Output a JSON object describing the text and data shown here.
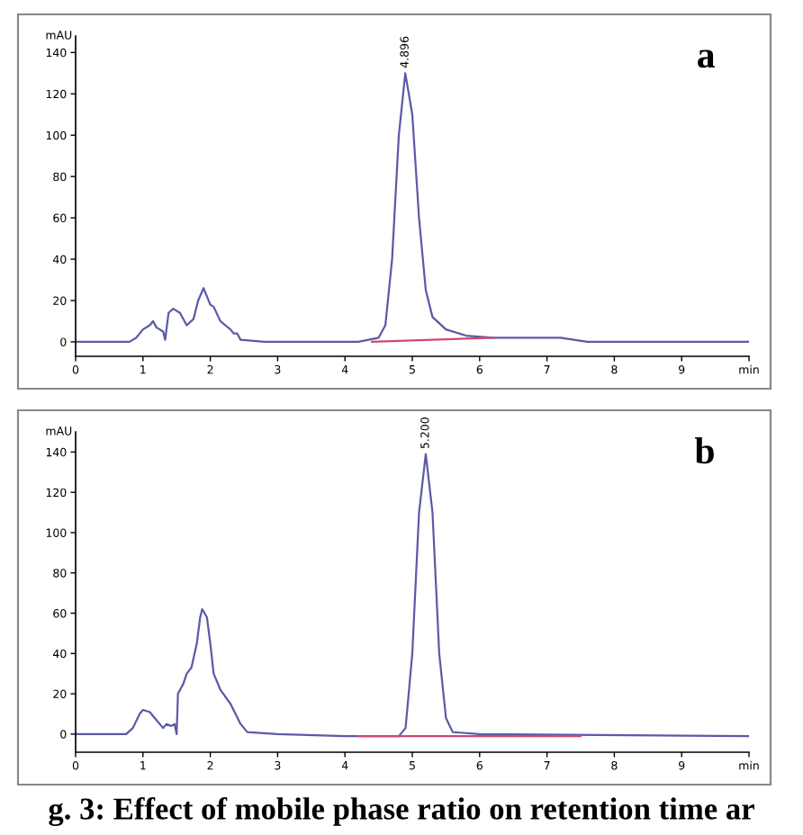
{
  "chart_data": [
    {
      "type": "line",
      "ylabel": "mAU",
      "xlim": [
        0,
        10
      ],
      "ylim": [
        -7,
        148
      ],
      "xticks": [
        0,
        1,
        2,
        3,
        4,
        5,
        6,
        7,
        8,
        9,
        {
          "value": 10,
          "label": "min"
        }
      ],
      "yticks": [
        0,
        20,
        40,
        60,
        80,
        100,
        120,
        140
      ],
      "grid": false,
      "legend": false,
      "marker": "none",
      "line_style": "solid",
      "series": [
        {
          "color": "#5a5aa8",
          "x": [
            0,
            0.8,
            0.9,
            1.0,
            1.1,
            1.15,
            1.2,
            1.3,
            1.33,
            1.38,
            1.45,
            1.55,
            1.65,
            1.75,
            1.82,
            1.9,
            1.95,
            2.0,
            2.05,
            2.15,
            2.3,
            2.35,
            2.4,
            2.45,
            2.8,
            4.2,
            4.5,
            4.6,
            4.7,
            4.8,
            4.896,
            5.0,
            5.1,
            5.2,
            5.3,
            5.5,
            5.8,
            6.2,
            6.8,
            7.2,
            7.6,
            8.5,
            10
          ],
          "values": [
            0,
            0,
            2,
            6,
            8,
            10,
            7,
            5,
            1,
            14,
            16,
            14,
            8,
            11,
            20,
            26,
            22,
            18,
            17,
            10,
            6,
            4,
            4,
            1,
            0,
            0,
            2,
            8,
            40,
            100,
            130,
            110,
            60,
            25,
            12,
            6,
            3,
            2,
            2,
            2,
            0,
            0,
            0
          ]
        },
        {
          "color": "#d04a6a",
          "x": [
            4.4,
            6.2
          ],
          "values": [
            0,
            2
          ]
        }
      ],
      "annotations": [
        {
          "text": "4.896",
          "x": 4.896,
          "y": 130
        },
        "a"
      ]
    },
    {
      "type": "line",
      "ylabel": "mAU",
      "xlim": [
        0,
        10
      ],
      "ylim": [
        -9,
        150
      ],
      "xticks": [
        0,
        1,
        2,
        3,
        4,
        5,
        6,
        7,
        8,
        9,
        {
          "value": 10,
          "label": "min"
        }
      ],
      "yticks": [
        0,
        20,
        40,
        60,
        80,
        100,
        120,
        140
      ],
      "grid": false,
      "legend": false,
      "marker": "none",
      "line_style": "solid",
      "series": [
        {
          "color": "#5a5aa8",
          "x": [
            0,
            0.75,
            0.85,
            0.95,
            1.0,
            1.1,
            1.2,
            1.3,
            1.35,
            1.42,
            1.47,
            1.5,
            1.52,
            1.6,
            1.65,
            1.72,
            1.8,
            1.85,
            1.88,
            1.95,
            2.0,
            2.05,
            2.15,
            2.3,
            2.45,
            2.55,
            3.0,
            4.0,
            4.8,
            4.9,
            5.0,
            5.1,
            5.2,
            5.3,
            5.4,
            5.5,
            5.6,
            6.0,
            10
          ],
          "values": [
            0,
            0,
            3,
            10,
            12,
            11,
            7,
            3,
            5,
            4,
            5,
            0,
            20,
            25,
            30,
            33,
            45,
            58,
            62,
            58,
            45,
            30,
            22,
            15,
            5,
            1,
            0,
            -1,
            -1,
            3,
            40,
            110,
            139,
            110,
            40,
            8,
            1,
            0,
            -1
          ]
        },
        {
          "color": "#d04a6a",
          "x": [
            4.2,
            7.5
          ],
          "values": [
            -1,
            -1
          ]
        }
      ],
      "annotations": [
        {
          "text": "5.200",
          "x": 5.2,
          "y": 139
        },
        "b",
        "g. 3: Effect of mobile phase ratio on retention time ar"
      ]
    }
  ]
}
